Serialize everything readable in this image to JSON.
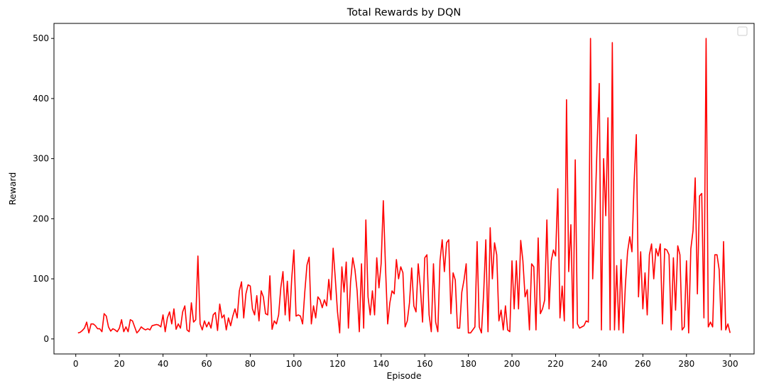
{
  "chart_data": {
    "type": "line",
    "title": "Total Rewards by DQN",
    "xlabel": "Episode",
    "ylabel": "Reward",
    "xlim": [
      -10,
      311
    ],
    "ylim": [
      -25,
      525
    ],
    "xticks": [
      0,
      20,
      40,
      60,
      80,
      100,
      120,
      140,
      160,
      180,
      200,
      220,
      240,
      260,
      280,
      300
    ],
    "yticks": [
      0,
      100,
      200,
      300,
      400,
      500
    ],
    "grid": false,
    "legend": "top-right, empty",
    "line_color": "#ff0000",
    "series": [
      {
        "x_start": 1,
        "x_step": 1,
        "values": [
          10,
          11,
          14,
          18,
          28,
          10,
          25,
          25,
          22,
          17,
          17,
          12,
          42,
          38,
          20,
          13,
          17,
          15,
          12,
          18,
          32,
          12,
          20,
          12,
          32,
          30,
          20,
          10,
          14,
          20,
          17,
          15,
          17,
          15,
          22,
          23,
          24,
          23,
          20,
          40,
          12,
          35,
          45,
          25,
          50,
          16,
          25,
          18,
          45,
          55,
          15,
          12,
          60,
          28,
          32,
          138,
          25,
          15,
          30,
          20,
          28,
          18,
          40,
          44,
          14,
          58,
          35,
          40,
          15,
          35,
          22,
          38,
          50,
          35,
          80,
          95,
          35,
          75,
          90,
          88,
          50,
          40,
          72,
          30,
          80,
          70,
          42,
          40,
          105,
          16,
          30,
          25,
          40,
          85,
          112,
          40,
          96,
          30,
          100,
          148,
          38,
          40,
          38,
          25,
          78,
          123,
          136,
          25,
          55,
          35,
          70,
          65,
          52,
          65,
          55,
          99,
          65,
          151,
          100,
          45,
          10,
          120,
          78,
          128,
          18,
          95,
          135,
          115,
          80,
          12,
          125,
          18,
          198,
          70,
          40,
          80,
          40,
          135,
          85,
          125,
          230,
          120,
          25,
          60,
          80,
          75,
          132,
          100,
          120,
          110,
          20,
          30,
          60,
          118,
          55,
          45,
          125,
          85,
          28,
          135,
          140,
          40,
          12,
          125,
          28,
          12,
          130,
          165,
          112,
          160,
          165,
          42,
          110,
          98,
          18,
          18,
          78,
          98,
          125,
          10,
          10,
          15,
          20,
          162,
          20,
          10,
          75,
          165,
          12,
          185,
          100,
          160,
          140,
          30,
          48,
          15,
          55,
          15,
          12,
          130,
          50,
          130,
          50,
          164,
          130,
          70,
          82,
          15,
          125,
          120,
          15,
          168,
          42,
          50,
          65,
          198,
          50,
          130,
          148,
          138,
          250,
          35,
          88,
          30,
          398,
          112,
          190,
          18,
          298,
          25,
          18,
          20,
          22,
          30,
          28,
          500,
          100,
          200,
          320,
          425,
          15,
          300,
          205,
          368,
          15,
          493,
          15,
          122,
          15,
          132,
          10,
          90,
          145,
          170,
          145,
          262,
          340,
          70,
          145,
          50,
          110,
          40,
          140,
          158,
          100,
          150,
          138,
          158,
          25,
          150,
          148,
          140,
          15,
          135,
          48,
          155,
          140,
          15,
          20,
          130,
          10,
          150,
          180,
          268,
          75,
          238,
          242,
          35,
          500,
          20,
          28,
          20,
          140,
          140,
          115,
          15,
          162,
          15,
          25,
          10
        ]
      }
    ]
  }
}
